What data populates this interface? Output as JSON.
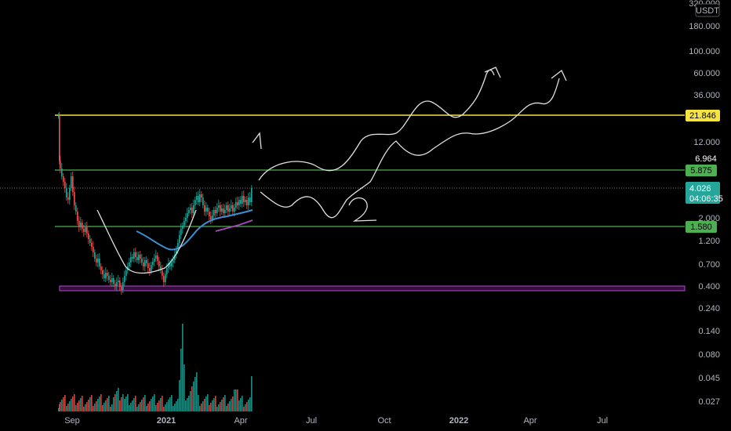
{
  "chart_data": {
    "type": "candlestick",
    "quote_currency": "USDT",
    "y_scale": "log",
    "ylim": [
      0.02,
      320
    ],
    "y_ticks": [
      "320.000",
      "180.000",
      "100.000",
      "60.000",
      "36.000",
      "12.000",
      "2.000",
      "1.200",
      "0.700",
      "0.400",
      "0.240",
      "0.140",
      "0.080",
      "0.045",
      "0.027"
    ],
    "x_ticks": [
      "Sep",
      "2021",
      "Apr",
      "Jul",
      "Oct",
      "2022",
      "Apr",
      "Jul"
    ],
    "last_price": "4.026",
    "countdown": "04:06:35",
    "marked_levels": [
      {
        "label": "21.846",
        "value": 21.846,
        "color": "#f5e342"
      },
      {
        "label": "6.964",
        "value": 6.964,
        "color": "#ffffff"
      },
      {
        "label": "5.875",
        "value": 5.875,
        "color": "#4caf50"
      },
      {
        "label": "1.580",
        "value": 1.58,
        "color": "#4caf50"
      }
    ],
    "support_zone": {
      "from": 0.38,
      "to": 0.41,
      "color": "#9c27b0"
    },
    "annotations": [
      "1",
      "2"
    ],
    "colors": {
      "up": "#26a69a",
      "down": "#ef5350",
      "ma_blue": "#3d8fd6",
      "ma_purple": "#ab47bc",
      "drawing": "#e0e0e0"
    }
  }
}
